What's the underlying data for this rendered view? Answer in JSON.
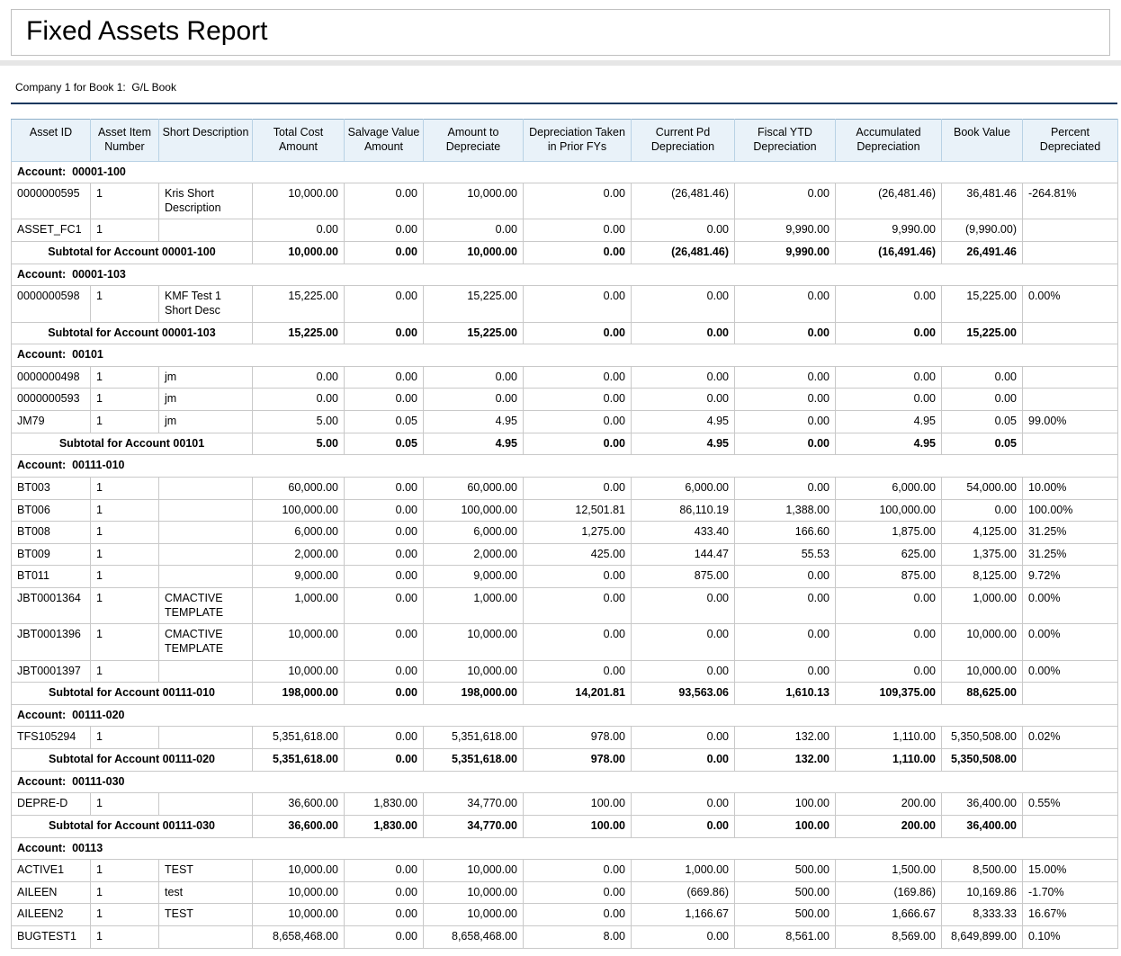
{
  "report": {
    "title": "Fixed Assets Report",
    "subtitle": "Company 1 for Book 1:  G/L Book"
  },
  "table": {
    "columns": [
      "Asset ID",
      "Asset Item Number",
      "Short Description",
      "Total Cost Amount",
      "Salvage Value Amount",
      "Amount to Depreciate",
      "Depreciation Taken in Prior FYs",
      "Current Pd Depreciation",
      "Fiscal YTD Depreciation",
      "Accumulated Depreciation",
      "Book Value",
      "Percent Depreciated"
    ],
    "groups": [
      {
        "account_label": "Account:  00001-100",
        "rows": [
          [
            "0000000595",
            "1",
            "Kris Short Description",
            "10,000.00",
            "0.00",
            "10,000.00",
            "0.00",
            "(26,481.46)",
            "0.00",
            "(26,481.46)",
            "36,481.46",
            "-264.81%"
          ],
          [
            "ASSET_FC1",
            "1",
            "",
            "0.00",
            "0.00",
            "0.00",
            "0.00",
            "0.00",
            "9,990.00",
            "9,990.00",
            "(9,990.00)",
            ""
          ]
        ],
        "subtotal": {
          "label": "Subtotal for Account 00001-100",
          "values": [
            "10,000.00",
            "0.00",
            "10,000.00",
            "0.00",
            "(26,481.46)",
            "9,990.00",
            "(16,491.46)",
            "26,491.46"
          ]
        }
      },
      {
        "account_label": "Account:  00001-103",
        "rows": [
          [
            "0000000598",
            "1",
            "KMF Test 1 Short Desc",
            "15,225.00",
            "0.00",
            "15,225.00",
            "0.00",
            "0.00",
            "0.00",
            "0.00",
            "15,225.00",
            "0.00%"
          ]
        ],
        "subtotal": {
          "label": "Subtotal for Account 00001-103",
          "values": [
            "15,225.00",
            "0.00",
            "15,225.00",
            "0.00",
            "0.00",
            "0.00",
            "0.00",
            "15,225.00"
          ]
        }
      },
      {
        "account_label": "Account:  00101",
        "rows": [
          [
            "0000000498",
            "1",
            "jm",
            "0.00",
            "0.00",
            "0.00",
            "0.00",
            "0.00",
            "0.00",
            "0.00",
            "0.00",
            ""
          ],
          [
            "0000000593",
            "1",
            "jm",
            "0.00",
            "0.00",
            "0.00",
            "0.00",
            "0.00",
            "0.00",
            "0.00",
            "0.00",
            ""
          ],
          [
            "JM79",
            "1",
            "jm",
            "5.00",
            "0.05",
            "4.95",
            "0.00",
            "4.95",
            "0.00",
            "4.95",
            "0.05",
            "99.00%"
          ]
        ],
        "subtotal": {
          "label": "Subtotal for Account 00101",
          "values": [
            "5.00",
            "0.05",
            "4.95",
            "0.00",
            "4.95",
            "0.00",
            "4.95",
            "0.05"
          ]
        }
      },
      {
        "account_label": "Account:  00111-010",
        "rows": [
          [
            "BT003",
            "1",
            "",
            "60,000.00",
            "0.00",
            "60,000.00",
            "0.00",
            "6,000.00",
            "0.00",
            "6,000.00",
            "54,000.00",
            "10.00%"
          ],
          [
            "BT006",
            "1",
            "",
            "100,000.00",
            "0.00",
            "100,000.00",
            "12,501.81",
            "86,110.19",
            "1,388.00",
            "100,000.00",
            "0.00",
            "100.00%"
          ],
          [
            "BT008",
            "1",
            "",
            "6,000.00",
            "0.00",
            "6,000.00",
            "1,275.00",
            "433.40",
            "166.60",
            "1,875.00",
            "4,125.00",
            "31.25%"
          ],
          [
            "BT009",
            "1",
            "",
            "2,000.00",
            "0.00",
            "2,000.00",
            "425.00",
            "144.47",
            "55.53",
            "625.00",
            "1,375.00",
            "31.25%"
          ],
          [
            "BT011",
            "1",
            "",
            "9,000.00",
            "0.00",
            "9,000.00",
            "0.00",
            "875.00",
            "0.00",
            "875.00",
            "8,125.00",
            "9.72%"
          ],
          [
            "JBT0001364",
            "1",
            "CMACTIVE TEMPLATE",
            "1,000.00",
            "0.00",
            "1,000.00",
            "0.00",
            "0.00",
            "0.00",
            "0.00",
            "1,000.00",
            "0.00%"
          ],
          [
            "JBT0001396",
            "1",
            "CMACTIVE TEMPLATE",
            "10,000.00",
            "0.00",
            "10,000.00",
            "0.00",
            "0.00",
            "0.00",
            "0.00",
            "10,000.00",
            "0.00%"
          ],
          [
            "JBT0001397",
            "1",
            "",
            "10,000.00",
            "0.00",
            "10,000.00",
            "0.00",
            "0.00",
            "0.00",
            "0.00",
            "10,000.00",
            "0.00%"
          ]
        ],
        "subtotal": {
          "label": "Subtotal for Account 00111-010",
          "values": [
            "198,000.00",
            "0.00",
            "198,000.00",
            "14,201.81",
            "93,563.06",
            "1,610.13",
            "109,375.00",
            "88,625.00"
          ]
        }
      },
      {
        "account_label": "Account:  00111-020",
        "rows": [
          [
            "TFS105294",
            "1",
            "",
            "5,351,618.00",
            "0.00",
            "5,351,618.00",
            "978.00",
            "0.00",
            "132.00",
            "1,110.00",
            "5,350,508.00",
            "0.02%"
          ]
        ],
        "subtotal": {
          "label": "Subtotal for Account 00111-020",
          "values": [
            "5,351,618.00",
            "0.00",
            "5,351,618.00",
            "978.00",
            "0.00",
            "132.00",
            "1,110.00",
            "5,350,508.00"
          ]
        }
      },
      {
        "account_label": "Account:  00111-030",
        "rows": [
          [
            "DEPRE-D",
            "1",
            "",
            "36,600.00",
            "1,830.00",
            "34,770.00",
            "100.00",
            "0.00",
            "100.00",
            "200.00",
            "36,400.00",
            "0.55%"
          ]
        ],
        "subtotal": {
          "label": "Subtotal for Account 00111-030",
          "values": [
            "36,600.00",
            "1,830.00",
            "34,770.00",
            "100.00",
            "0.00",
            "100.00",
            "200.00",
            "36,400.00"
          ]
        }
      },
      {
        "account_label": "Account:  00113",
        "rows": [
          [
            "ACTIVE1",
            "1",
            "TEST",
            "10,000.00",
            "0.00",
            "10,000.00",
            "0.00",
            "1,000.00",
            "500.00",
            "1,500.00",
            "8,500.00",
            "15.00%"
          ],
          [
            "AILEEN",
            "1",
            "test",
            "10,000.00",
            "0.00",
            "10,000.00",
            "0.00",
            "(669.86)",
            "500.00",
            "(169.86)",
            "10,169.86",
            "-1.70%"
          ],
          [
            "AILEEN2",
            "1",
            "TEST",
            "10,000.00",
            "0.00",
            "10,000.00",
            "0.00",
            "1,166.67",
            "500.00",
            "1,666.67",
            "8,333.33",
            "16.67%"
          ],
          [
            "BUGTEST1",
            "1",
            "",
            "8,658,468.00",
            "0.00",
            "8,658,468.00",
            "8.00",
            "0.00",
            "8,561.00",
            "8,569.00",
            "8,649,899.00",
            "0.10%"
          ]
        ],
        "subtotal": null
      }
    ]
  },
  "colors": {
    "header_bg": "#e9f2f9",
    "header_border": "#b9d2e5",
    "group_row_bg": "#dfdfdf",
    "body_border": "#c9c9c9",
    "rule_navy": "#17375e",
    "band_gray": "#e6e6e6"
  }
}
